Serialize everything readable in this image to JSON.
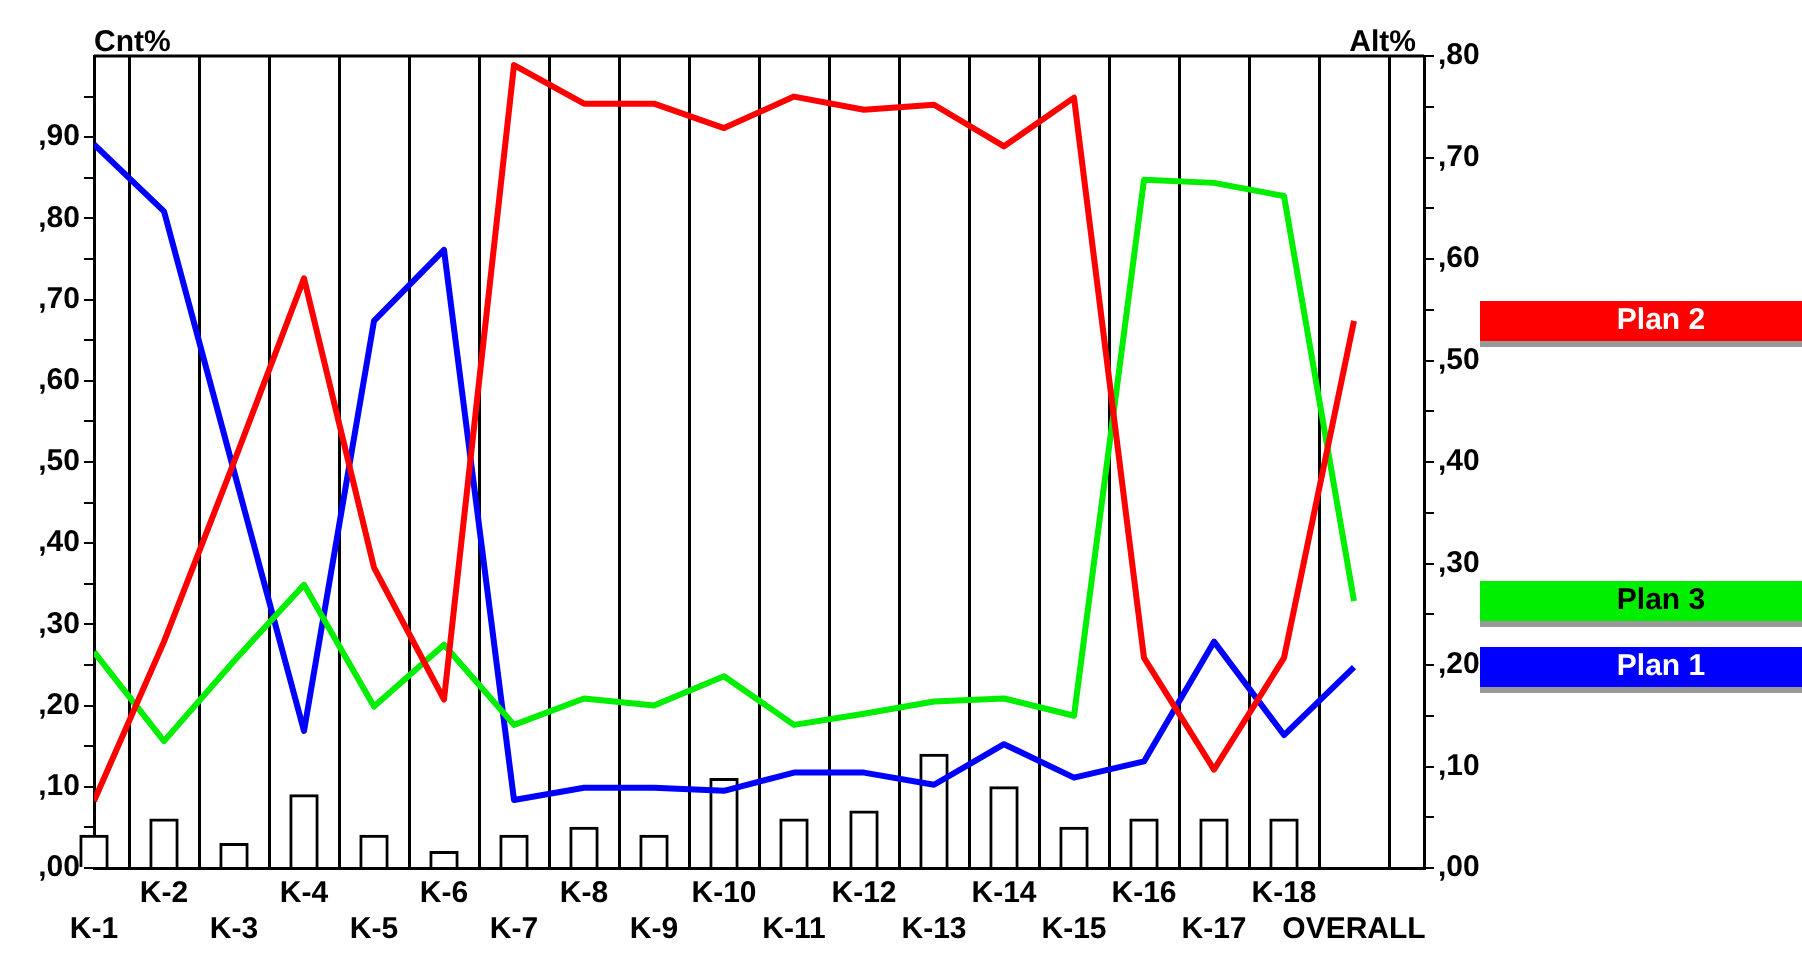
{
  "chart_data": {
    "type": "line",
    "ylabel": "Cnt%",
    "y2label": "Alt%",
    "categories": [
      "K-1",
      "K-2",
      "K-3",
      "K-4",
      "K-5",
      "K-6",
      "K-7",
      "K-8",
      "K-9",
      "K-10",
      "K-11",
      "K-12",
      "K-13",
      "K-14",
      "K-15",
      "K-16",
      "K-17",
      "K-18",
      "OVERALL"
    ],
    "series": [
      {
        "type": "bar",
        "axis": "y",
        "color": "#ffffff",
        "values": [
          4,
          6,
          3,
          9,
          4,
          2,
          4,
          5,
          4,
          11,
          6,
          7,
          14,
          10,
          5,
          6,
          6,
          6,
          null
        ]
      },
      {
        "name": "Plan 2",
        "axis": "y2",
        "color": "#ff0000",
        "values": [
          6.6,
          22.3,
          40,
          58.1,
          29.6,
          16.6,
          79.1,
          75.3,
          75.3,
          72.9,
          76,
          74.7,
          75.2,
          71.1,
          75.9,
          20.7,
          9.7,
          20.7,
          53.9
        ]
      },
      {
        "name": "Plan 3",
        "axis": "y2",
        "color": "#00ee00",
        "values": [
          21.3,
          12.5,
          20.4,
          27.9,
          15.9,
          22,
          14.1,
          16.7,
          16,
          18.9,
          14.1,
          15.2,
          16.4,
          16.7,
          15,
          67.8,
          67.5,
          66.2,
          26.3
        ]
      },
      {
        "name": "Plan 1",
        "axis": "y2",
        "color": "#0000ff",
        "values": [
          71.3,
          64.7,
          39.1,
          13.5,
          53.9,
          60.9,
          6.7,
          7.9,
          7.9,
          7.6,
          9.4,
          9.4,
          8.2,
          12.2,
          8.9,
          10.5,
          22.3,
          13.1,
          19.8
        ]
      }
    ],
    "ylim": [
      0,
      100
    ],
    "yticks": [
      {
        "value": 0,
        "label": ",00"
      },
      {
        "value": 5,
        "label": null
      },
      {
        "value": 10,
        "label": ",10"
      },
      {
        "value": 15,
        "label": null
      },
      {
        "value": 20,
        "label": ",20"
      },
      {
        "value": 25,
        "label": null
      },
      {
        "value": 30,
        "label": ",30"
      },
      {
        "value": 35,
        "label": null
      },
      {
        "value": 40,
        "label": ",40"
      },
      {
        "value": 45,
        "label": null
      },
      {
        "value": 50,
        "label": ",50"
      },
      {
        "value": 55,
        "label": null
      },
      {
        "value": 60,
        "label": ",60"
      },
      {
        "value": 65,
        "label": null
      },
      {
        "value": 70,
        "label": ",70"
      },
      {
        "value": 75,
        "label": null
      },
      {
        "value": 80,
        "label": ",80"
      },
      {
        "value": 85,
        "label": null
      },
      {
        "value": 90,
        "label": ",90"
      },
      {
        "value": 95,
        "label": null
      }
    ],
    "y2lim": [
      0,
      80
    ],
    "y2ticks": [
      {
        "value": 0,
        "label": ",00"
      },
      {
        "value": 5,
        "label": null
      },
      {
        "value": 10,
        "label": ",10"
      },
      {
        "value": 15,
        "label": null
      },
      {
        "value": 20,
        "label": ",20"
      },
      {
        "value": 25,
        "label": null
      },
      {
        "value": 30,
        "label": ",30"
      },
      {
        "value": 35,
        "label": null
      },
      {
        "value": 40,
        "label": ",40"
      },
      {
        "value": 45,
        "label": null
      },
      {
        "value": 50,
        "label": ",50"
      },
      {
        "value": 55,
        "label": null
      },
      {
        "value": 60,
        "label": ",60"
      },
      {
        "value": 65,
        "label": null
      },
      {
        "value": 70,
        "label": ",70"
      },
      {
        "value": 75,
        "label": null
      },
      {
        "value": 80,
        "label": ",80"
      }
    ],
    "grid": "x",
    "legend": "right",
    "marker": "none",
    "line_style": "solid"
  }
}
